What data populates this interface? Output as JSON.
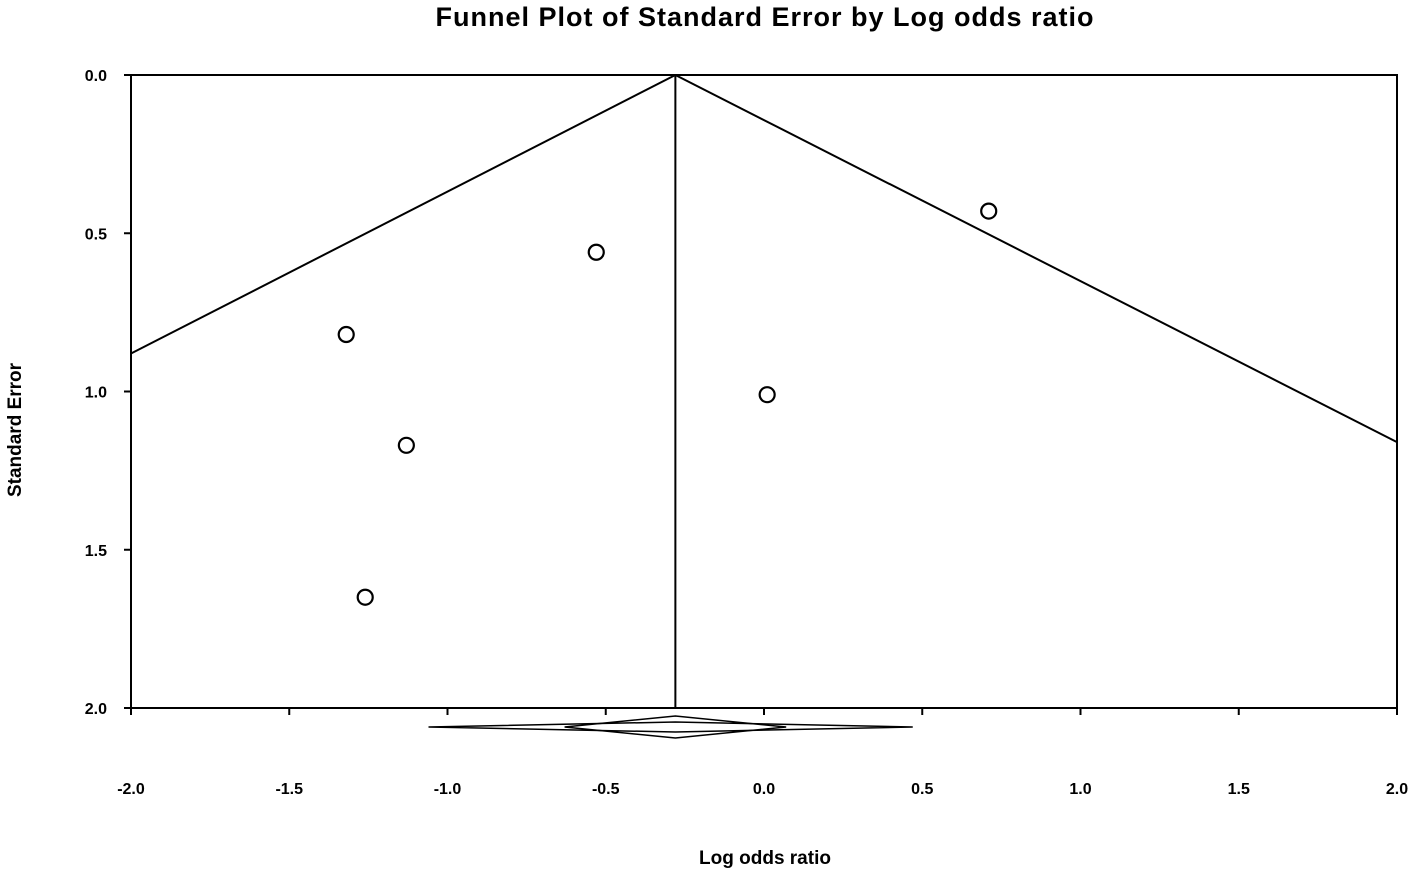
{
  "chart_data": {
    "type": "scatter",
    "title": "Funnel Plot of Standard Error by Log odds ratio",
    "xlabel": "Log odds ratio",
    "ylabel": "Standard Error",
    "xlim": [
      -2.0,
      2.0
    ],
    "ylim": [
      0.0,
      2.0
    ],
    "y_inverted": true,
    "x_ticks": [
      "-2.0",
      "-1.5",
      "-1.0",
      "-0.5",
      "0.0",
      "0.5",
      "1.0",
      "1.5",
      "2.0"
    ],
    "y_ticks": [
      "0.0",
      "0.5",
      "1.0",
      "1.5",
      "2.0"
    ],
    "grid": false,
    "pooled_estimate": -0.28,
    "funnel_lines": [
      {
        "from": {
          "x": -0.28,
          "y": 0.0
        },
        "to": {
          "x": -2.0,
          "y": 0.88
        }
      },
      {
        "from": {
          "x": -0.28,
          "y": 0.0
        },
        "to": {
          "x": 2.0,
          "y": 1.16
        }
      }
    ],
    "points": [
      {
        "x": 0.71,
        "y": 0.43
      },
      {
        "x": -0.53,
        "y": 0.56
      },
      {
        "x": -1.32,
        "y": 0.82
      },
      {
        "x": 0.01,
        "y": 1.01
      },
      {
        "x": -1.13,
        "y": 1.17
      },
      {
        "x": -1.26,
        "y": 1.65
      }
    ],
    "summary_diamonds": [
      {
        "center": -0.28,
        "low": -1.06,
        "high": 0.47
      },
      {
        "center": -0.28,
        "low": -0.63,
        "high": 0.07
      }
    ]
  }
}
